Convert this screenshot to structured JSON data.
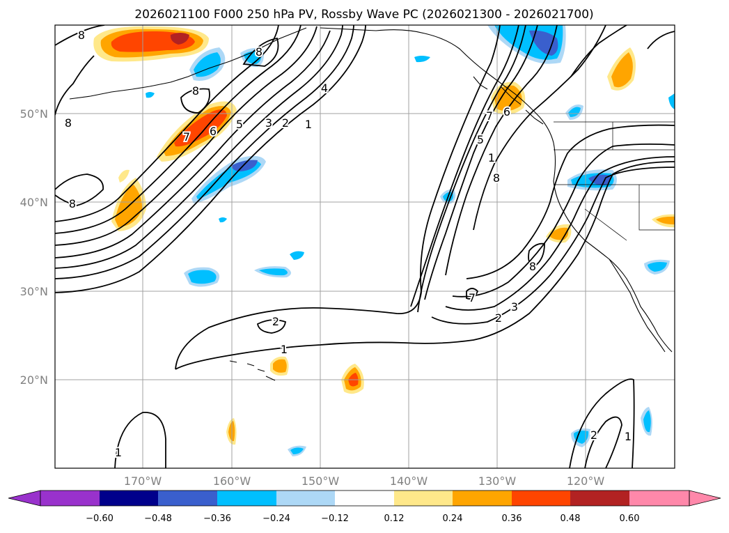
{
  "title": "2026021100 F000 250 hPa PV, Rossby Wave PC (2026021300 - 2026021700)",
  "lat_labels": [
    "50°N",
    "40°N",
    "30°N",
    "20°N"
  ],
  "lon_labels": [
    "170°W",
    "160°W",
    "150°W",
    "140°W",
    "130°W",
    "120°W"
  ],
  "colorbar": {
    "ticks": [
      "−0.60",
      "−0.48",
      "−0.36",
      "−0.24",
      "−0.12",
      "0.12",
      "0.24",
      "0.36",
      "0.48",
      "0.60"
    ],
    "colors": [
      "#9932cc",
      "#00008b",
      "#3a5fcd",
      "#00bfff",
      "#add8f6",
      "#ffffff",
      "#ffe88a",
      "#ffa500",
      "#ff4500",
      "#b22222",
      "#ff88aa"
    ]
  },
  "contour_labels": [
    "8",
    "8",
    "8",
    "8",
    "8",
    "7",
    "6",
    "5",
    "4",
    "3",
    "2",
    "1",
    "7",
    "6",
    "5",
    "8",
    "8",
    "7",
    "2",
    "3",
    "2",
    "1",
    "1",
    "1",
    "2",
    "1"
  ],
  "chart_data": {
    "type": "map",
    "variable": "250 hPa PV (contours, PVU) with Rossby Wave PC anomalies (shaded)",
    "init": "2026021100",
    "forecast_hour": "F000",
    "period": "2026021300 - 2026021700",
    "lon_range": [
      -180,
      -110
    ],
    "lat_range": [
      10,
      60
    ],
    "shading_levels": [
      -0.6,
      -0.48,
      -0.36,
      -0.24,
      -0.12,
      0.12,
      0.24,
      0.36,
      0.48,
      0.6
    ],
    "pv_contour_values": [
      1,
      2,
      3,
      4,
      5,
      6,
      7,
      8
    ]
  }
}
